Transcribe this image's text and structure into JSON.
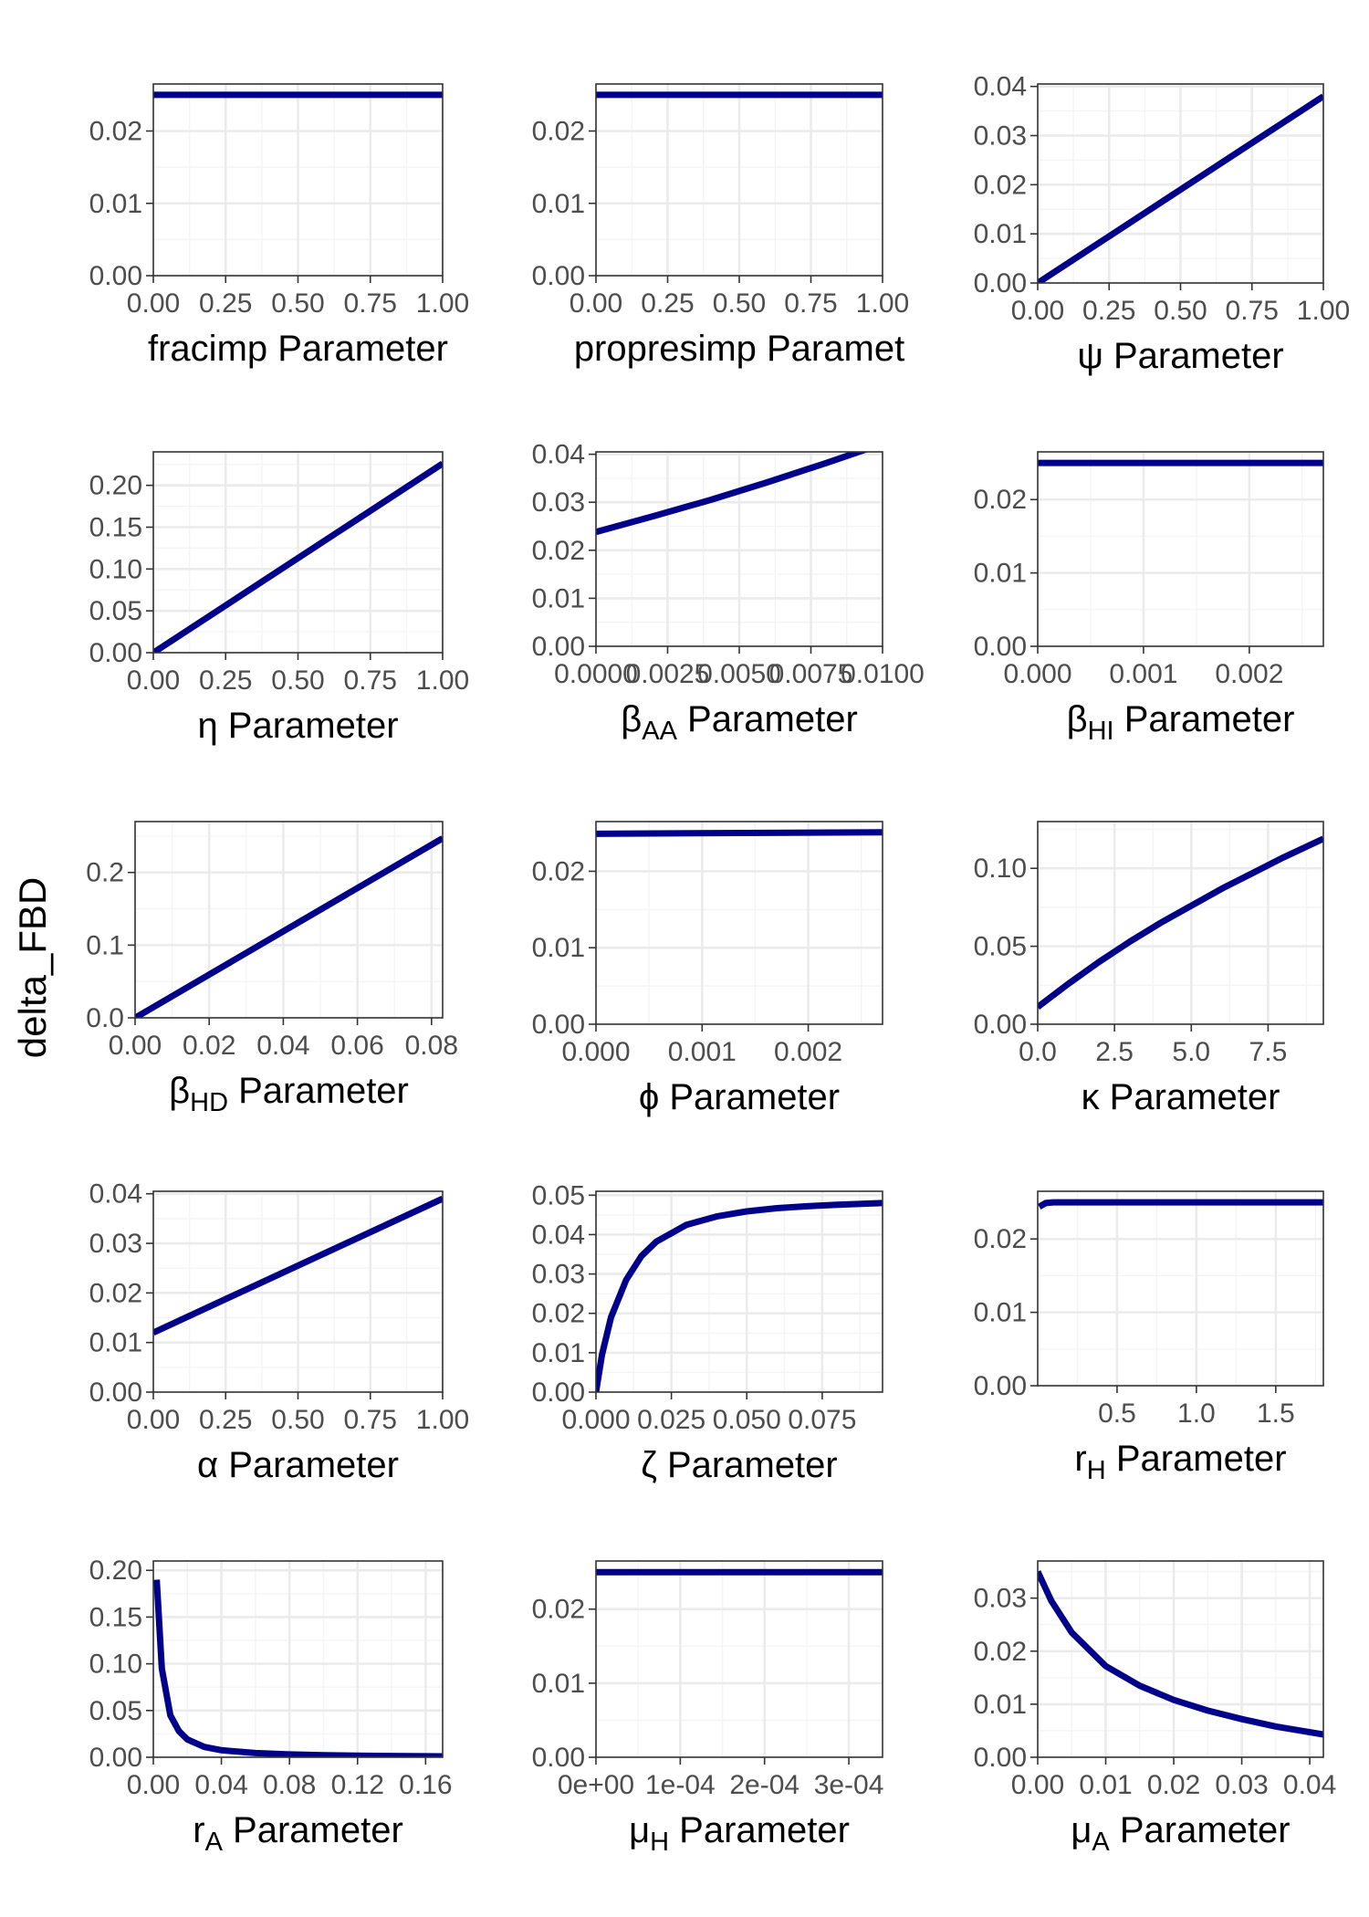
{
  "ylabel": "delta_FBD",
  "colors": {
    "line": "#00008b",
    "grid_major": "#ebebeb",
    "grid_minor": "#f4f4f4",
    "panel_border": "#333333",
    "tick_text": "#4d4d4d"
  },
  "chart_data": [
    {
      "type": "line",
      "xlabel": "fracimp Parameter",
      "xlim": [
        0,
        1
      ],
      "ylim": [
        0,
        0.0265
      ],
      "xticks": [
        0,
        0.25,
        0.5,
        0.75,
        1
      ],
      "xtick_labels": [
        "0.00",
        "0.25",
        "0.50",
        "0.75",
        "1.00"
      ],
      "yticks": [
        0,
        0.01,
        0.02
      ],
      "ytick_labels": [
        "0.00",
        "0.01",
        "0.02"
      ],
      "series": [
        {
          "x": [
            0,
            1
          ],
          "y": [
            0.025,
            0.025
          ]
        }
      ]
    },
    {
      "type": "line",
      "xlabel": "propresimp Paramet",
      "xlim": [
        0,
        1
      ],
      "ylim": [
        0,
        0.0265
      ],
      "xticks": [
        0,
        0.25,
        0.5,
        0.75,
        1
      ],
      "xtick_labels": [
        "0.00",
        "0.25",
        "0.50",
        "0.75",
        "1.00"
      ],
      "yticks": [
        0,
        0.01,
        0.02
      ],
      "ytick_labels": [
        "0.00",
        "0.01",
        "0.02"
      ],
      "series": [
        {
          "x": [
            0,
            1
          ],
          "y": [
            0.025,
            0.025
          ]
        }
      ]
    },
    {
      "type": "line",
      "xlabel": "ψ Parameter",
      "xlim": [
        0,
        1
      ],
      "ylim": [
        0,
        0.0405
      ],
      "xticks": [
        0,
        0.25,
        0.5,
        0.75,
        1
      ],
      "xtick_labels": [
        "0.00",
        "0.25",
        "0.50",
        "0.75",
        "1.00"
      ],
      "yticks": [
        0,
        0.01,
        0.02,
        0.03,
        0.04
      ],
      "ytick_labels": [
        "0.00",
        "0.01",
        "0.02",
        "0.03",
        "0.04"
      ],
      "series": [
        {
          "x": [
            0,
            1
          ],
          "y": [
            0,
            0.038
          ]
        }
      ]
    },
    {
      "type": "line",
      "xlabel": "η Parameter",
      "xlim": [
        0,
        1
      ],
      "ylim": [
        0,
        0.24
      ],
      "xticks": [
        0,
        0.25,
        0.5,
        0.75,
        1
      ],
      "xtick_labels": [
        "0.00",
        "0.25",
        "0.50",
        "0.75",
        "1.00"
      ],
      "yticks": [
        0,
        0.05,
        0.1,
        0.15,
        0.2
      ],
      "ytick_labels": [
        "0.00",
        "0.05",
        "0.10",
        "0.15",
        "0.20"
      ],
      "series": [
        {
          "x": [
            0,
            1
          ],
          "y": [
            0,
            0.226
          ]
        }
      ]
    },
    {
      "type": "line",
      "xlabel": "βAA Parameter",
      "xlabel_sym": "β",
      "xlabel_sub": "AA",
      "xlabel_rest": " Parameter",
      "xlim": [
        0,
        0.01
      ],
      "ylim": [
        0,
        0.0405
      ],
      "xticks": [
        0,
        0.0025,
        0.005,
        0.0075,
        0.01
      ],
      "xtick_labels": [
        "0.0000",
        "0.0025",
        "0.0050",
        "0.0075",
        "0.0100"
      ],
      "yticks": [
        0,
        0.01,
        0.02,
        0.03,
        0.04
      ],
      "ytick_labels": [
        "0.00",
        "0.01",
        "0.02",
        "0.03",
        "0.04"
      ],
      "series": [
        {
          "x": [
            0,
            0.002,
            0.004,
            0.006,
            0.008,
            0.01
          ],
          "y": [
            0.0238,
            0.0271,
            0.0305,
            0.0342,
            0.0381,
            0.0422
          ]
        }
      ]
    },
    {
      "type": "line",
      "xlabel": "βHI Parameter",
      "xlabel_sym": "β",
      "xlabel_sub": "HI",
      "xlabel_rest": " Parameter",
      "xlim": [
        0,
        0.0027
      ],
      "ylim": [
        0,
        0.0265
      ],
      "xticks": [
        0,
        0.001,
        0.002
      ],
      "xtick_labels": [
        "0.000",
        "0.001",
        "0.002"
      ],
      "yticks": [
        0,
        0.01,
        0.02
      ],
      "ytick_labels": [
        "0.00",
        "0.01",
        "0.02"
      ],
      "series": [
        {
          "x": [
            0,
            0.0027
          ],
          "y": [
            0.025,
            0.025
          ]
        }
      ]
    },
    {
      "type": "line",
      "xlabel": "βHD Parameter",
      "xlabel_sym": "β",
      "xlabel_sub": "HD",
      "xlabel_rest": " Parameter",
      "xlim": [
        0,
        0.083
      ],
      "ylim": [
        0,
        0.27
      ],
      "xticks": [
        0,
        0.02,
        0.04,
        0.06,
        0.08
      ],
      "xtick_labels": [
        "0.00",
        "0.02",
        "0.04",
        "0.06",
        "0.08"
      ],
      "yticks": [
        0,
        0.1,
        0.2
      ],
      "ytick_labels": [
        "0.0",
        "0.1",
        "0.2"
      ],
      "series": [
        {
          "x": [
            0,
            0.083
          ],
          "y": [
            0,
            0.247
          ]
        }
      ]
    },
    {
      "type": "line",
      "xlabel": "ϕ Parameter",
      "xlim": [
        0,
        0.0027
      ],
      "ylim": [
        0,
        0.0265
      ],
      "xticks": [
        0,
        0.001,
        0.002
      ],
      "xtick_labels": [
        "0.000",
        "0.001",
        "0.002"
      ],
      "yticks": [
        0,
        0.01,
        0.02
      ],
      "ytick_labels": [
        "0.00",
        "0.01",
        "0.02"
      ],
      "series": [
        {
          "x": [
            0,
            0.0027
          ],
          "y": [
            0.0249,
            0.0251
          ]
        }
      ]
    },
    {
      "type": "line",
      "xlabel": "κ Parameter",
      "xlim": [
        0,
        9.3
      ],
      "ylim": [
        0,
        0.13
      ],
      "xticks": [
        0,
        2.5,
        5,
        7.5
      ],
      "xtick_labels": [
        "0.0",
        "2.5",
        "5.0",
        "7.5"
      ],
      "yticks": [
        0,
        0.05,
        0.1
      ],
      "ytick_labels": [
        "0.00",
        "0.05",
        "0.10"
      ],
      "series": [
        {
          "x": [
            0,
            1,
            2,
            3,
            4,
            5,
            6,
            7,
            8,
            9.3
          ],
          "y": [
            0.011,
            0.026,
            0.04,
            0.053,
            0.065,
            0.076,
            0.087,
            0.097,
            0.107,
            0.119
          ]
        }
      ]
    },
    {
      "type": "line",
      "xlabel": "α Parameter",
      "xlim": [
        0,
        1
      ],
      "ylim": [
        0,
        0.0405
      ],
      "xticks": [
        0,
        0.25,
        0.5,
        0.75,
        1
      ],
      "xtick_labels": [
        "0.00",
        "0.25",
        "0.50",
        "0.75",
        "1.00"
      ],
      "yticks": [
        0,
        0.01,
        0.02,
        0.03,
        0.04
      ],
      "ytick_labels": [
        "0.00",
        "0.01",
        "0.02",
        "0.03",
        "0.04"
      ],
      "series": [
        {
          "x": [
            0,
            1
          ],
          "y": [
            0.012,
            0.039
          ]
        }
      ]
    },
    {
      "type": "line",
      "xlabel": "ζ Parameter",
      "xlim": [
        0,
        0.095
      ],
      "ylim": [
        0,
        0.051
      ],
      "xticks": [
        0,
        0.025,
        0.05,
        0.075
      ],
      "xtick_labels": [
        "0.000",
        "0.025",
        "0.050",
        "0.075"
      ],
      "yticks": [
        0,
        0.01,
        0.02,
        0.03,
        0.04,
        0.05
      ],
      "ytick_labels": [
        "0.00",
        "0.01",
        "0.02",
        "0.03",
        "0.04",
        "0.05"
      ],
      "series": [
        {
          "x": [
            0,
            0.002,
            0.005,
            0.01,
            0.015,
            0.02,
            0.03,
            0.04,
            0.05,
            0.06,
            0.07,
            0.08,
            0.095
          ],
          "y": [
            0,
            0.0095,
            0.019,
            0.0285,
            0.0345,
            0.0382,
            0.0425,
            0.0446,
            0.0459,
            0.0467,
            0.0472,
            0.0476,
            0.048
          ]
        }
      ]
    },
    {
      "type": "line",
      "xlabel": "rH Parameter",
      "xlabel_sym": "r",
      "xlabel_sub": "H",
      "xlabel_rest": " Parameter",
      "xlim": [
        0,
        1.8
      ],
      "ylim": [
        0,
        0.0265
      ],
      "xticks": [
        0.5,
        1,
        1.5
      ],
      "xtick_labels": [
        "0.5",
        "1.0",
        "1.5"
      ],
      "yticks": [
        0,
        0.01,
        0.02
      ],
      "ytick_labels": [
        "0.00",
        "0.01",
        "0.02"
      ],
      "series": [
        {
          "x": [
            0.01,
            0.05,
            0.1,
            0.2,
            1.8
          ],
          "y": [
            0.0244,
            0.0249,
            0.025,
            0.025,
            0.025
          ]
        }
      ]
    },
    {
      "type": "line",
      "xlabel": "rA Parameter",
      "xlabel_sym": "r",
      "xlabel_sub": "A",
      "xlabel_rest": " Parameter",
      "xlim": [
        0,
        0.17
      ],
      "ylim": [
        0,
        0.21
      ],
      "xticks": [
        0,
        0.04,
        0.08,
        0.12,
        0.16
      ],
      "xtick_labels": [
        "0.00",
        "0.04",
        "0.08",
        "0.12",
        "0.16"
      ],
      "yticks": [
        0,
        0.05,
        0.1,
        0.15,
        0.2
      ],
      "ytick_labels": [
        "0.00",
        "0.05",
        "0.10",
        "0.15",
        "0.20"
      ],
      "series": [
        {
          "x": [
            0.002,
            0.005,
            0.01,
            0.015,
            0.02,
            0.03,
            0.04,
            0.06,
            0.08,
            0.1,
            0.13,
            0.17
          ],
          "y": [
            0.19,
            0.095,
            0.045,
            0.028,
            0.019,
            0.011,
            0.0075,
            0.0045,
            0.003,
            0.0022,
            0.0015,
            0.001
          ]
        }
      ]
    },
    {
      "type": "line",
      "xlabel": "μH Parameter",
      "xlabel_sym": "μ",
      "xlabel_sub": "H",
      "xlabel_rest": " Parameter",
      "xlim": [
        0,
        0.00034
      ],
      "ylim": [
        0,
        0.0265
      ],
      "xticks": [
        0,
        0.0001,
        0.0002,
        0.0003
      ],
      "xtick_labels": [
        "0e+00",
        "1e-04",
        "2e-04",
        "3e-04"
      ],
      "yticks": [
        0,
        0.01,
        0.02
      ],
      "ytick_labels": [
        "0.00",
        "0.01",
        "0.02"
      ],
      "series": [
        {
          "x": [
            0,
            0.00034
          ],
          "y": [
            0.025,
            0.025
          ]
        }
      ]
    },
    {
      "type": "line",
      "xlabel": "μA Parameter",
      "xlabel_sym": "μ",
      "xlabel_sub": "A",
      "xlabel_rest": " Parameter",
      "xlim": [
        0,
        0.042
      ],
      "ylim": [
        0,
        0.037
      ],
      "xticks": [
        0,
        0.01,
        0.02,
        0.03,
        0.04
      ],
      "xtick_labels": [
        "0.00",
        "0.01",
        "0.02",
        "0.03",
        "0.04"
      ],
      "yticks": [
        0,
        0.01,
        0.02,
        0.03
      ],
      "ytick_labels": [
        "0.00",
        "0.01",
        "0.02",
        "0.03"
      ],
      "series": [
        {
          "x": [
            0,
            0.002,
            0.005,
            0.01,
            0.015,
            0.02,
            0.025,
            0.03,
            0.035,
            0.042
          ],
          "y": [
            0.035,
            0.0295,
            0.0235,
            0.0172,
            0.0135,
            0.0108,
            0.0088,
            0.0072,
            0.0058,
            0.0043
          ]
        }
      ]
    }
  ]
}
